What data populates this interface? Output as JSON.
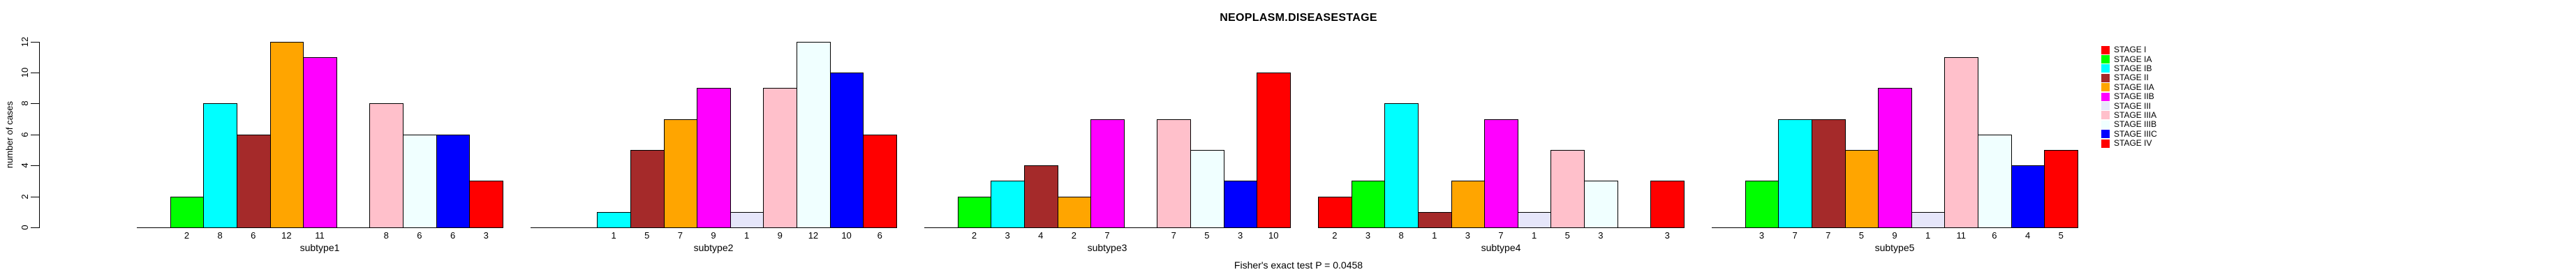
{
  "title": "NEOPLASM.DISEASESTAGE",
  "footer_note": "Fisher's exact test P = 0.0458",
  "chart_data": {
    "type": "bar",
    "title": "NEOPLASM.DISEASESTAGE",
    "subtitle": "",
    "xlabel_per_panel": true,
    "ylabel": "number of cases",
    "ylim": [
      0,
      12
    ],
    "yticks": [
      0,
      2,
      4,
      6,
      8,
      10,
      12
    ],
    "grid": false,
    "legend_position": "right",
    "footer": "Fisher's exact test P = 0.0458",
    "categories": [
      "STAGE I",
      "STAGE IA",
      "STAGE IB",
      "STAGE II",
      "STAGE IIA",
      "STAGE IIB",
      "STAGE III",
      "STAGE IIIA",
      "STAGE IIIB",
      "STAGE IIIC",
      "STAGE IV"
    ],
    "colors": [
      "#FF0000",
      "#00FF00",
      "#00FFFF",
      "#A52A2A",
      "#FFA500",
      "#FF00FF",
      "#E6E6FA",
      "#FFC0CB",
      "#F0FFFF",
      "#0000FF",
      "#FF0000"
    ],
    "bar_value_labels_shown": "nonzero only",
    "series": [
      {
        "name": "subtype1",
        "values": [
          0,
          2,
          8,
          6,
          12,
          11,
          0,
          8,
          6,
          6,
          3
        ]
      },
      {
        "name": "subtype2",
        "values": [
          0,
          0,
          1,
          5,
          7,
          9,
          1,
          9,
          12,
          10,
          6
        ]
      },
      {
        "name": "subtype3",
        "values": [
          0,
          2,
          3,
          4,
          2,
          7,
          0,
          7,
          5,
          3,
          10
        ]
      },
      {
        "name": "subtype4",
        "values": [
          2,
          3,
          8,
          1,
          3,
          7,
          1,
          5,
          3,
          0,
          3
        ]
      },
      {
        "name": "subtype5",
        "values": [
          0,
          3,
          7,
          7,
          5,
          9,
          1,
          11,
          6,
          4,
          5
        ]
      }
    ]
  },
  "legend": {
    "entries": [
      {
        "label": "STAGE I",
        "color": "#FF0000"
      },
      {
        "label": "STAGE IA",
        "color": "#00FF00"
      },
      {
        "label": "STAGE IB",
        "color": "#00FFFF"
      },
      {
        "label": "STAGE II",
        "color": "#A52A2A"
      },
      {
        "label": "STAGE IIA",
        "color": "#FFA500"
      },
      {
        "label": "STAGE IIB",
        "color": "#FF00FF"
      },
      {
        "label": "STAGE III",
        "color": "#E6E6FA"
      },
      {
        "label": "STAGE IIIA",
        "color": "#FFC0CB"
      },
      {
        "label": "STAGE IIIB",
        "color": "#F0FFFF"
      },
      {
        "label": "STAGE IIIC",
        "color": "#0000FF"
      },
      {
        "label": "STAGE IV",
        "color": "#FF0000"
      }
    ]
  },
  "y_axis": {
    "label": "number of cases",
    "tick_labels": [
      "0",
      "2",
      "4",
      "6",
      "8",
      "10",
      "12"
    ]
  }
}
